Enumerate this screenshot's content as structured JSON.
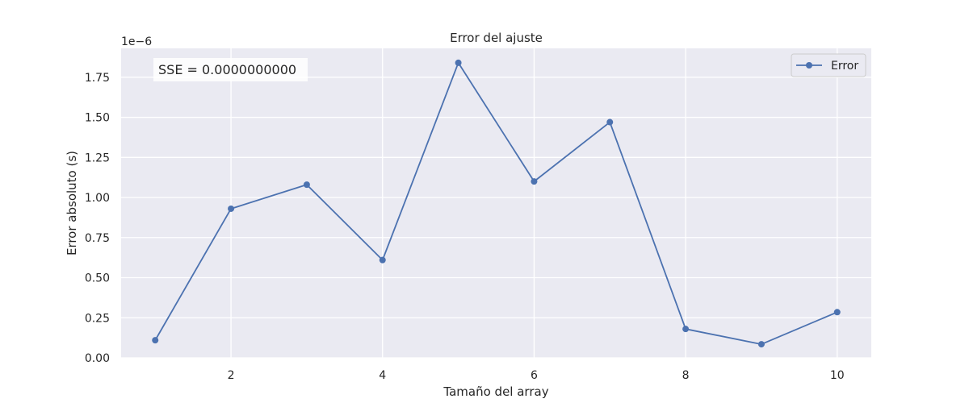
{
  "chart_data": {
    "type": "line",
    "title": "Error del ajuste",
    "xlabel": "Tamaño del array",
    "ylabel": "Error absoluto (s)",
    "y_scale_label": "1e−6",
    "x": [
      1,
      2,
      3,
      4,
      5,
      6,
      7,
      8,
      9,
      10
    ],
    "series": [
      {
        "name": "Error",
        "color": "#4c72b0",
        "values": [
          0.11,
          0.93,
          1.08,
          0.61,
          1.84,
          1.1,
          1.47,
          0.18,
          0.085,
          0.285
        ]
      }
    ],
    "xlim": [
      0.55,
      10.45
    ],
    "ylim": [
      0,
      1.93
    ],
    "xticks": [
      2,
      4,
      6,
      8,
      10
    ],
    "xtick_labels": [
      "2",
      "4",
      "6",
      "8",
      "10"
    ],
    "yticks": [
      0,
      0.25,
      0.5,
      0.75,
      1.0,
      1.25,
      1.5,
      1.75
    ],
    "ytick_labels": [
      "0.00",
      "0.25",
      "0.50",
      "0.75",
      "1.00",
      "1.25",
      "1.50",
      "1.75"
    ],
    "grid": true,
    "legend": {
      "position": "top-right",
      "entries": [
        "Error"
      ]
    },
    "annotation": "SSE = 0.0000000000",
    "background_color": "#eaeaf2",
    "grid_color": "#ffffff"
  }
}
